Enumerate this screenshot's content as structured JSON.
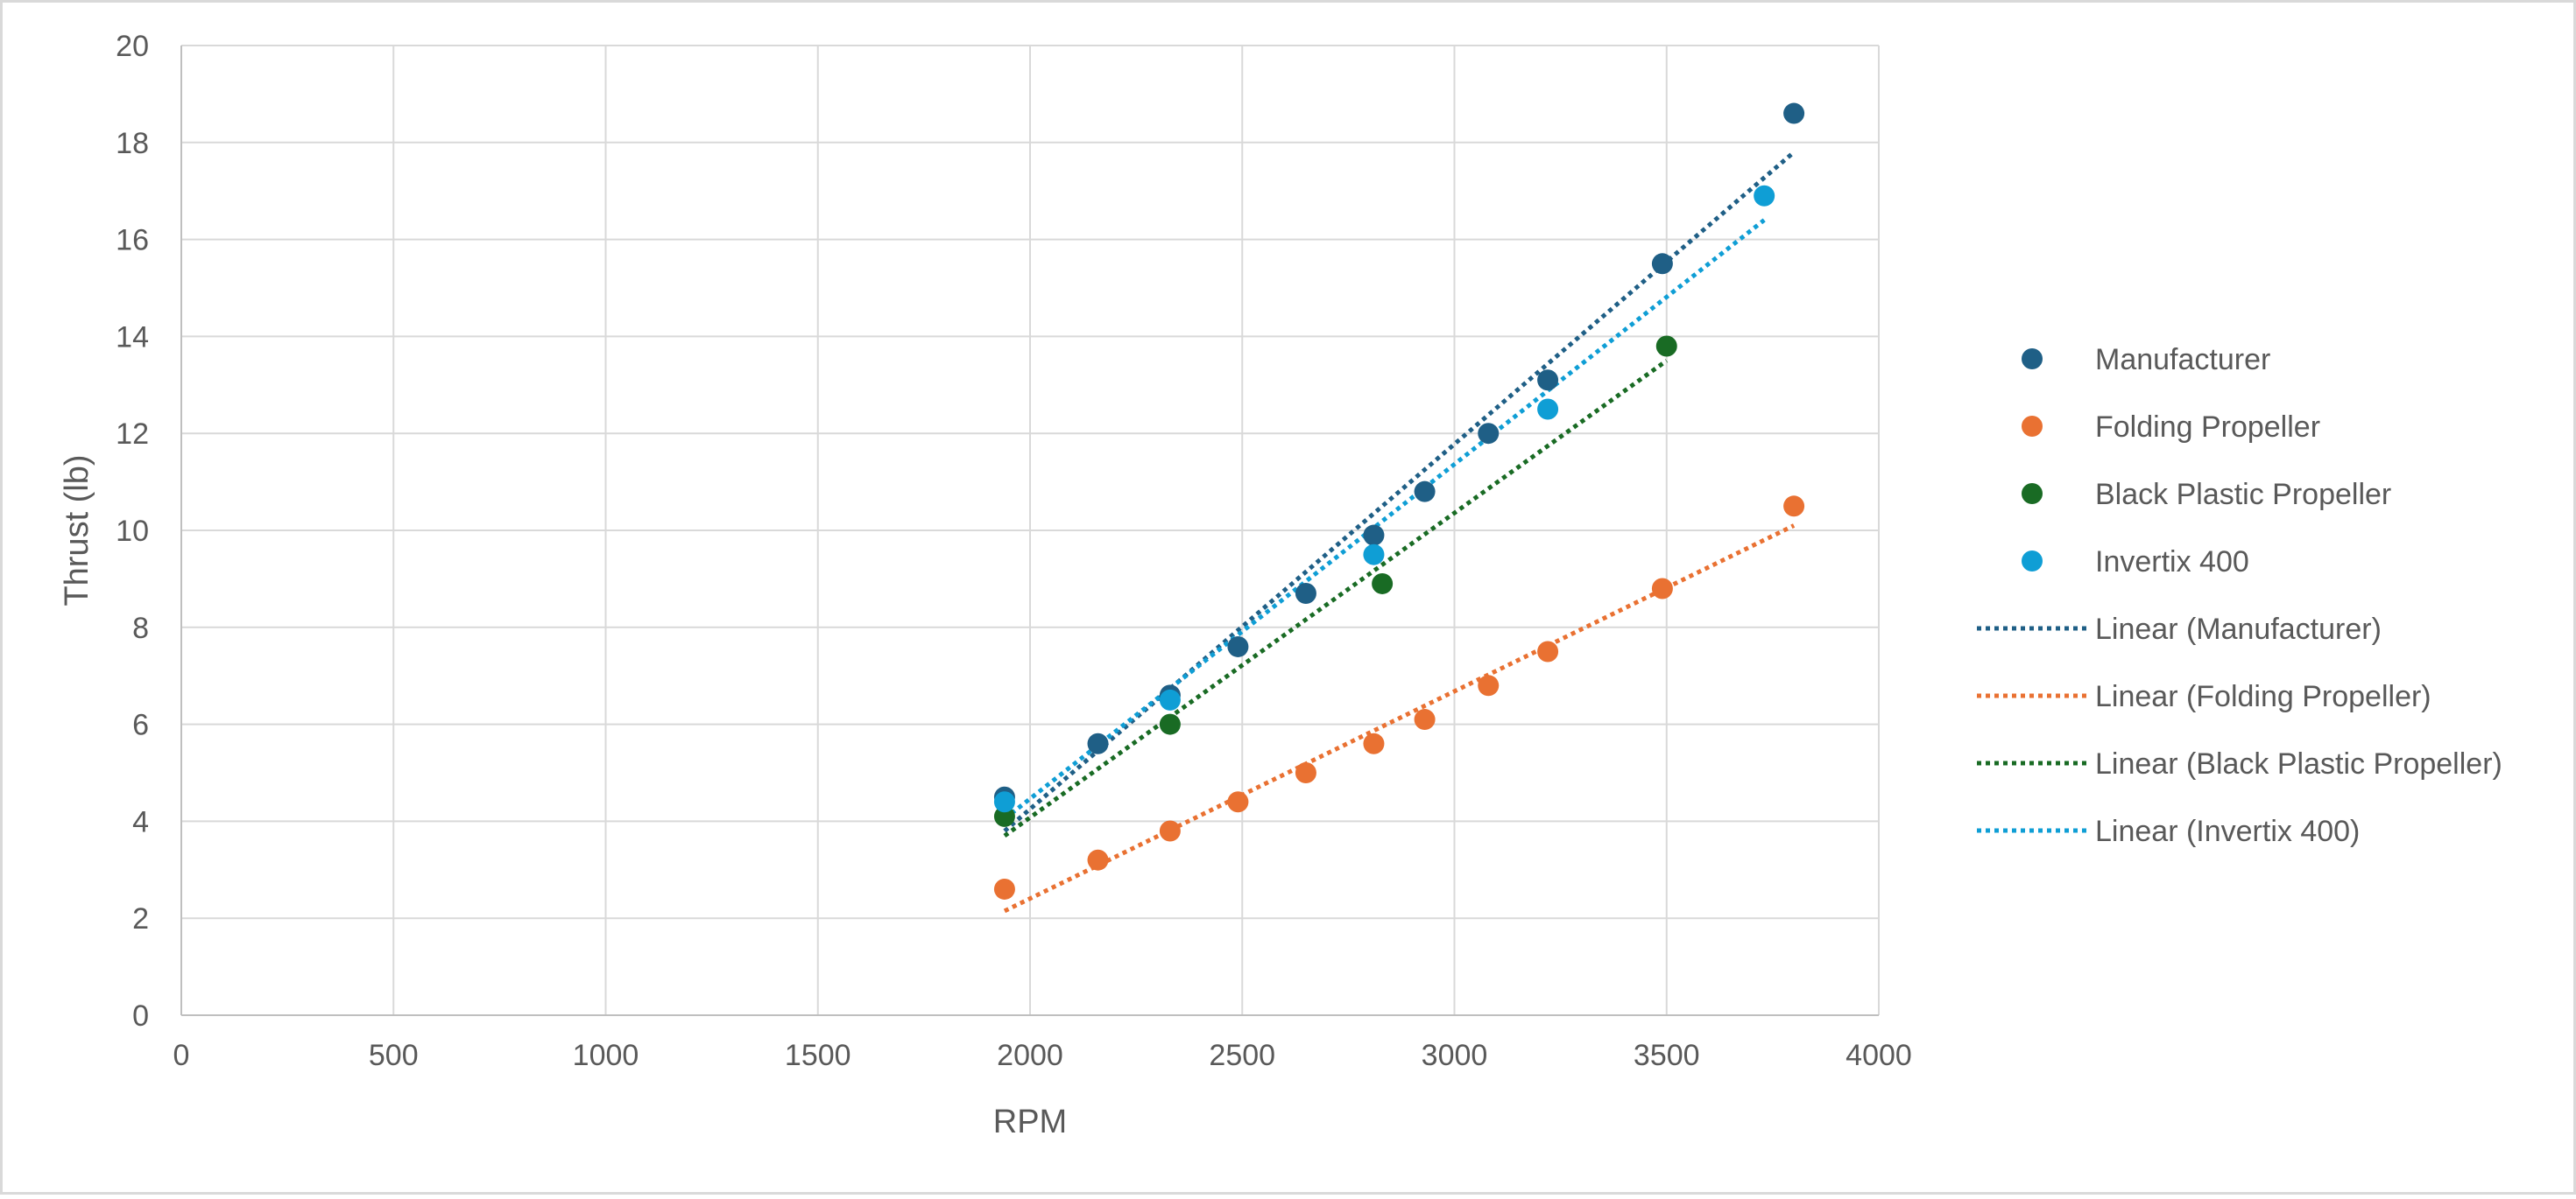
{
  "chart_data": {
    "type": "scatter",
    "title": "",
    "xlabel": "RPM",
    "ylabel": "Thrust (lb)",
    "xlim": [
      0,
      4000
    ],
    "ylim": [
      0,
      20
    ],
    "xticks": [
      0,
      500,
      1000,
      1500,
      2000,
      2500,
      3000,
      3500,
      4000
    ],
    "yticks": [
      0,
      2,
      4,
      6,
      8,
      10,
      12,
      14,
      16,
      18,
      20
    ],
    "grid": true,
    "legend_position": "right",
    "series": [
      {
        "name": "Manufacturer",
        "color": "#1f5f86",
        "x": [
          1940,
          2160,
          2330,
          2490,
          2650,
          2810,
          2930,
          3080,
          3220,
          3490,
          3800
        ],
        "y": [
          4.5,
          5.6,
          6.6,
          7.6,
          8.7,
          9.9,
          10.8,
          12.0,
          13.1,
          15.5,
          18.6
        ]
      },
      {
        "name": "Folding Propeller",
        "color": "#e97132",
        "x": [
          1940,
          2160,
          2330,
          2490,
          2650,
          2810,
          2930,
          3080,
          3220,
          3490,
          3800
        ],
        "y": [
          2.6,
          3.2,
          3.8,
          4.4,
          5.0,
          5.6,
          6.1,
          6.8,
          7.5,
          8.8,
          10.5
        ]
      },
      {
        "name": "Black Plastic Propeller",
        "color": "#196b24",
        "x": [
          1940,
          2330,
          2830,
          3500
        ],
        "y": [
          4.1,
          6.0,
          8.9,
          13.8
        ]
      },
      {
        "name": "Invertix 400",
        "color": "#0f9ed5",
        "x": [
          1940,
          2330,
          2810,
          3220,
          3730
        ],
        "y": [
          4.4,
          6.5,
          9.5,
          12.5,
          16.9
        ]
      }
    ],
    "trendlines": [
      {
        "name": "Linear (Manufacturer)",
        "series": "Manufacturer",
        "color": "#1f5f86",
        "x": [
          1940,
          3800
        ],
        "y": [
          3.8,
          17.8
        ]
      },
      {
        "name": "Linear (Folding Propeller)",
        "series": "Folding Propeller",
        "color": "#e97132",
        "x": [
          1940,
          3800
        ],
        "y": [
          2.15,
          10.1
        ]
      },
      {
        "name": "Linear (Black Plastic Propeller)",
        "series": "Black Plastic Propeller",
        "color": "#196b24",
        "x": [
          1940,
          3500
        ],
        "y": [
          3.7,
          13.5
        ]
      },
      {
        "name": "Linear (Invertix 400)",
        "series": "Invertix 400",
        "color": "#0f9ed5",
        "x": [
          1940,
          3730
        ],
        "y": [
          4.05,
          16.4
        ]
      }
    ],
    "legend": [
      {
        "label": "Manufacturer",
        "kind": "marker",
        "color": "#1f5f86"
      },
      {
        "label": "Folding Propeller",
        "kind": "marker",
        "color": "#e97132"
      },
      {
        "label": "Black Plastic Propeller",
        "kind": "marker",
        "color": "#196b24"
      },
      {
        "label": "Invertix 400",
        "kind": "marker",
        "color": "#0f9ed5"
      },
      {
        "label": "Linear (Manufacturer)",
        "kind": "line",
        "color": "#1f5f86"
      },
      {
        "label": "Linear (Folding Propeller)",
        "kind": "line",
        "color": "#e97132"
      },
      {
        "label": "Linear (Black Plastic Propeller)",
        "kind": "line",
        "color": "#196b24"
      },
      {
        "label": "Linear (Invertix 400)",
        "kind": "line",
        "color": "#0f9ed5"
      }
    ]
  }
}
